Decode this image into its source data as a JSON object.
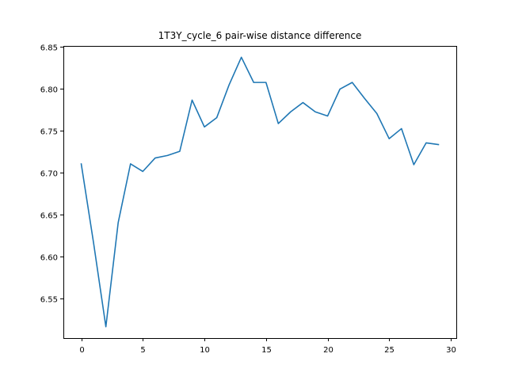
{
  "chart_data": {
    "type": "line",
    "title": "1T3Y_cycle_6 pair-wise distance difference",
    "xlabel": "",
    "ylabel": "",
    "xlim": [
      -1.45,
      30.45
    ],
    "ylim": [
      6.5025,
      6.8505
    ],
    "x_ticks": [
      0,
      5,
      10,
      15,
      20,
      25,
      30
    ],
    "y_ticks": [
      6.55,
      6.6,
      6.65,
      6.7,
      6.75,
      6.8,
      6.85
    ],
    "grid": false,
    "legend": "none",
    "line_color": "#1f77b4",
    "series": [
      {
        "x": [
          0,
          1,
          2,
          3,
          4,
          5,
          6,
          7,
          8,
          9,
          10,
          11,
          12,
          13,
          14,
          15,
          16,
          17,
          18,
          19,
          20,
          21,
          22,
          23,
          24,
          25,
          26,
          27,
          28,
          29
        ],
        "values": [
          6.71,
          6.616,
          6.516,
          6.64,
          6.71,
          6.701,
          6.717,
          6.72,
          6.725,
          6.786,
          6.754,
          6.765,
          6.804,
          6.837,
          6.807,
          6.807,
          6.758,
          6.772,
          6.783,
          6.772,
          6.767,
          6.799,
          6.807,
          6.788,
          6.77,
          6.74,
          6.752,
          6.709,
          6.735,
          6.733
        ]
      }
    ]
  }
}
